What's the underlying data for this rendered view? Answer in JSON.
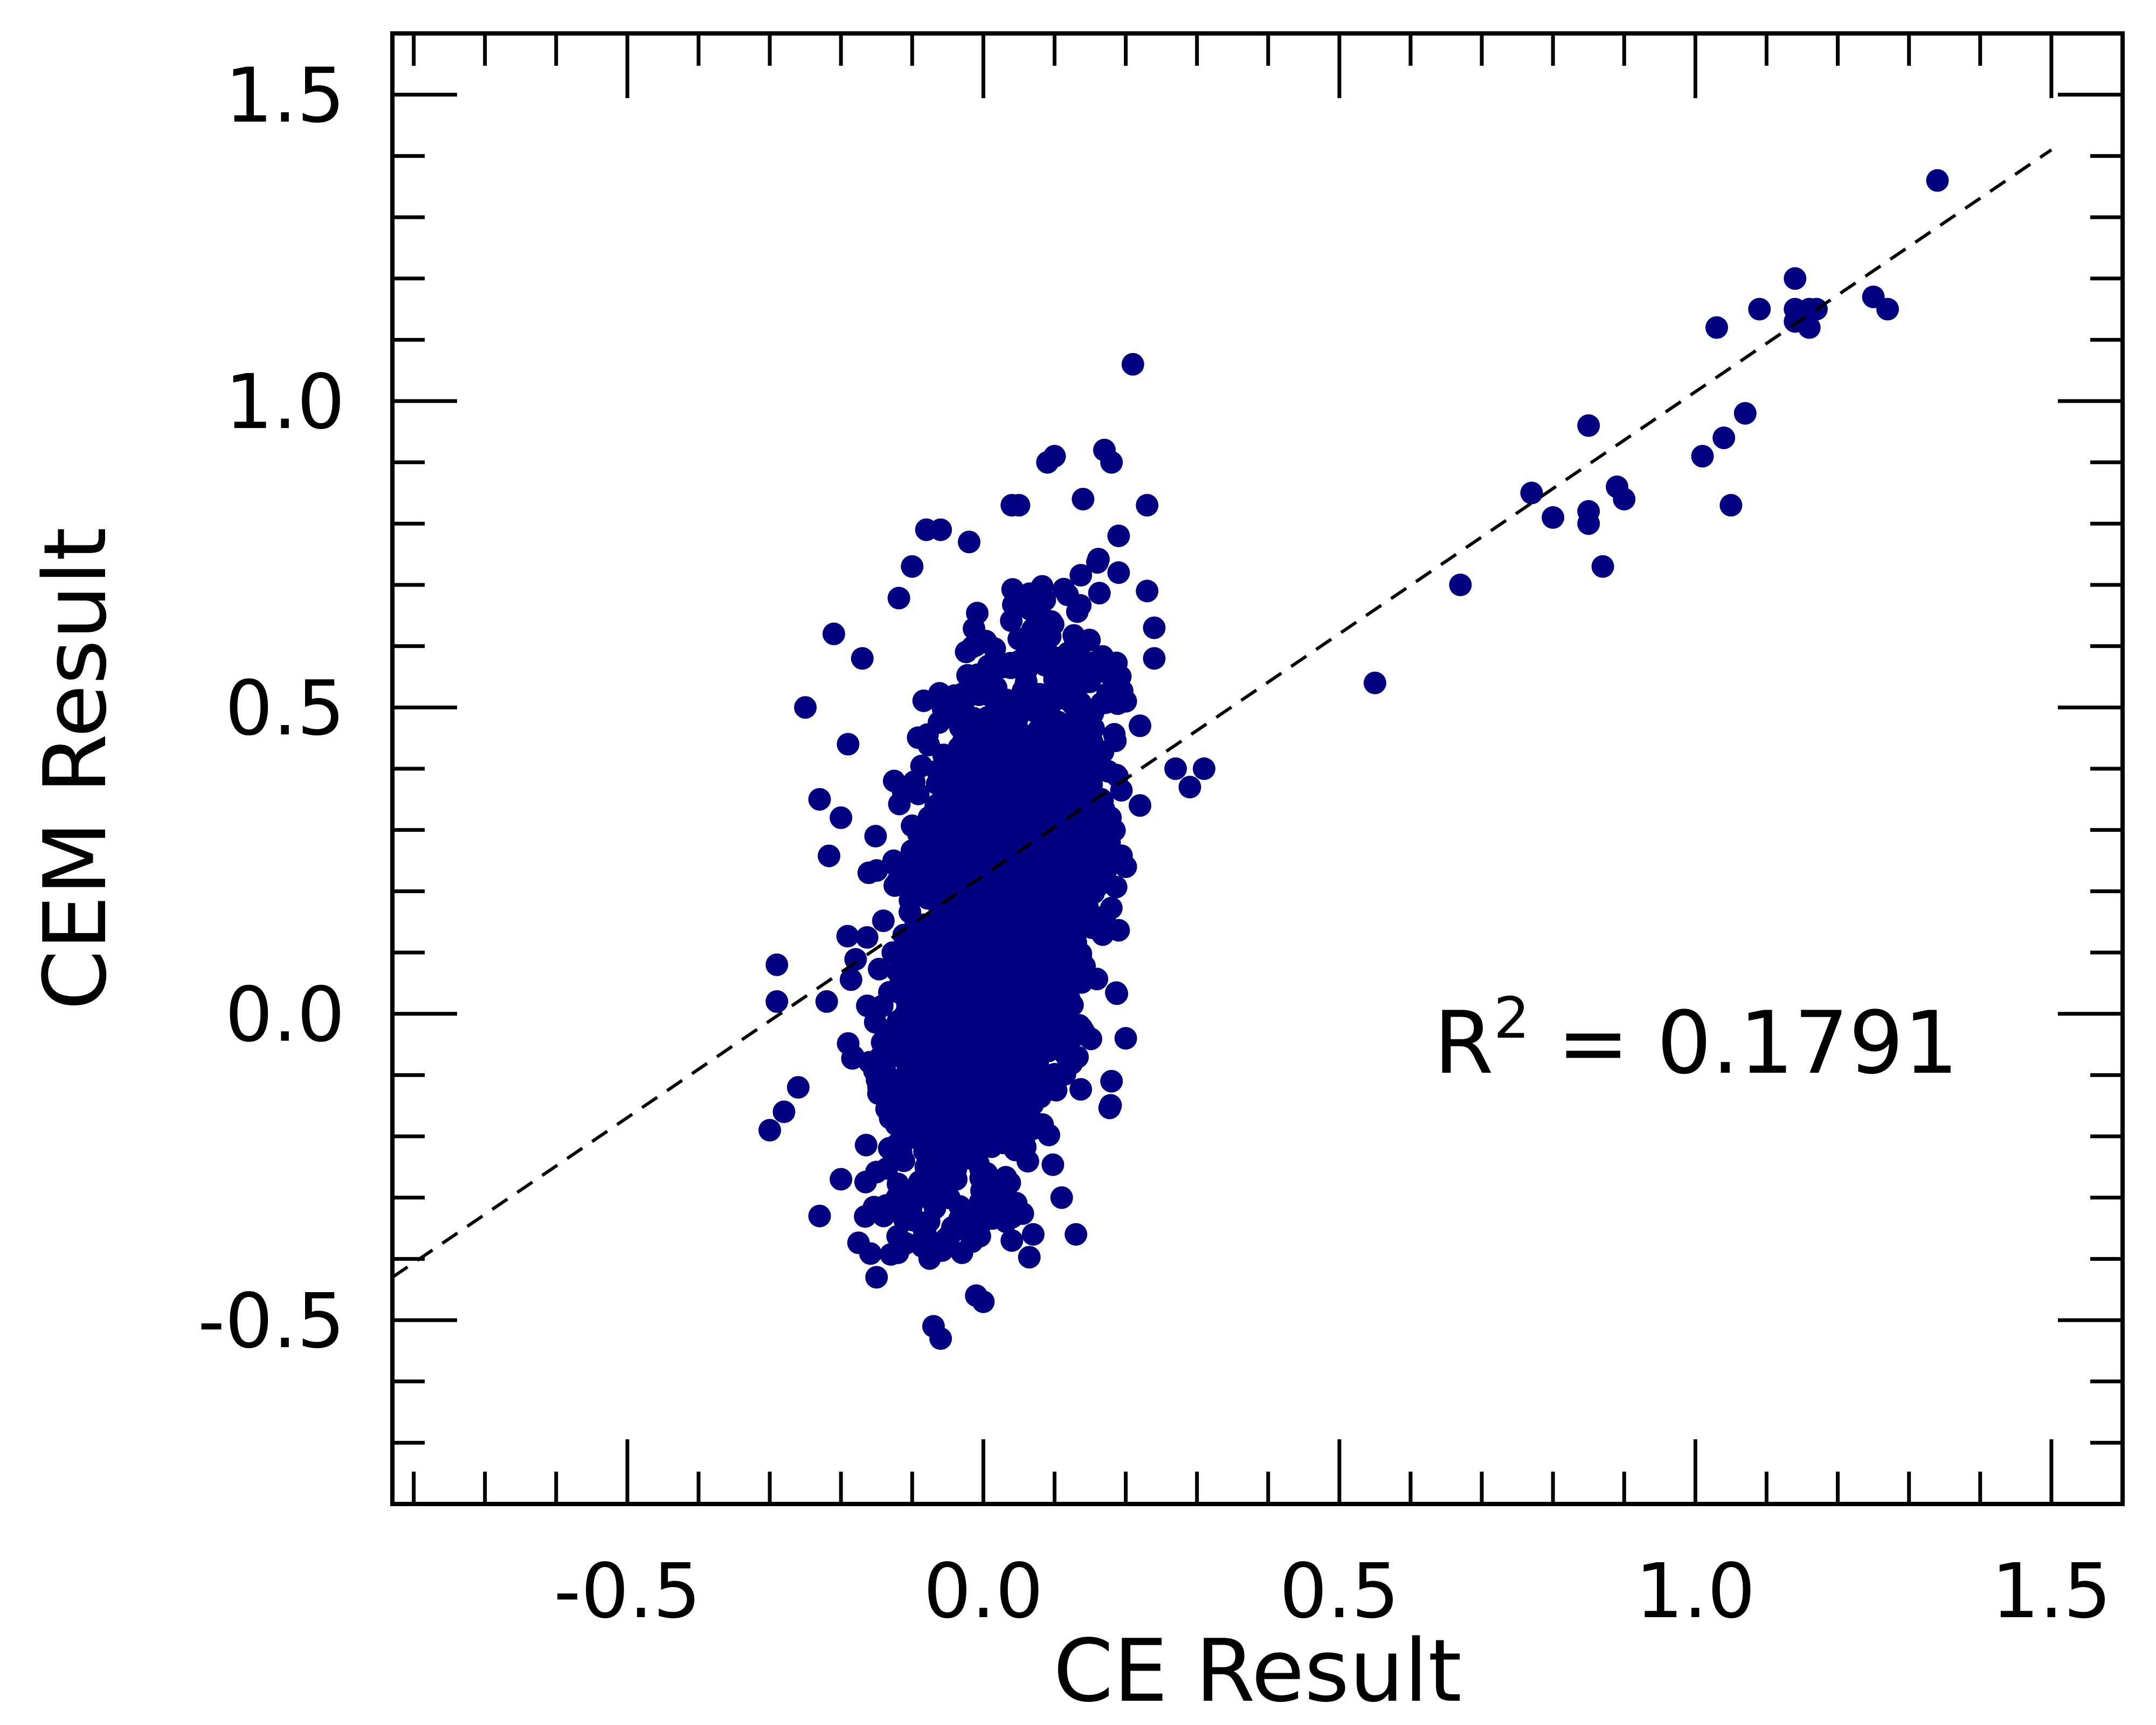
{
  "chart_data": {
    "type": "scatter",
    "title": "",
    "xlabel": "CE Result",
    "ylabel": "CEM Result",
    "xlim": [
      -0.83,
      1.6
    ],
    "ylim": [
      -0.8,
      1.6
    ],
    "x_major_ticks": [
      -0.5,
      0.0,
      0.5,
      1.0,
      1.5
    ],
    "x_tick_labels": [
      "-0.5",
      "0.0",
      "0.5",
      "1.0",
      "1.5"
    ],
    "y_major_ticks": [
      -0.5,
      0.0,
      0.5,
      1.0,
      1.5
    ],
    "y_tick_labels": [
      "-0.5",
      "0.0",
      "0.5",
      "1.0",
      "1.5"
    ],
    "minor_tick_step": 0.1,
    "ticks_direction": "in",
    "grid": false,
    "legend": "none",
    "marker_color": "#000080",
    "fit_line": {
      "style": "dashed",
      "color": "#000000",
      "x": [
        -0.83,
        1.5
      ],
      "y": [
        -0.43,
        1.41
      ]
    },
    "annotation": {
      "base": "R",
      "sup": "2",
      "rest": " = 0.1791"
    },
    "cluster": {
      "description": "dense cloud of several thousand points",
      "x_center": 0.02,
      "x_sd": 0.07,
      "y_center": 0.15,
      "y_sd": 0.22,
      "correlation": 0.42
    },
    "points": [
      [
        1.34,
        1.36
      ],
      [
        1.14,
        1.2
      ],
      [
        1.09,
        1.15
      ],
      [
        1.14,
        1.15
      ],
      [
        1.16,
        1.15
      ],
      [
        1.17,
        1.15
      ],
      [
        1.14,
        1.13
      ],
      [
        1.16,
        1.12
      ],
      [
        1.25,
        1.17
      ],
      [
        1.27,
        1.15
      ],
      [
        1.03,
        1.12
      ],
      [
        1.07,
        0.98
      ],
      [
        1.04,
        0.94
      ],
      [
        1.01,
        0.91
      ],
      [
        1.05,
        0.83
      ],
      [
        0.85,
        0.96
      ],
      [
        0.77,
        0.85
      ],
      [
        0.8,
        0.81
      ],
      [
        0.85,
        0.82
      ],
      [
        0.85,
        0.8
      ],
      [
        0.89,
        0.86
      ],
      [
        0.9,
        0.84
      ],
      [
        0.87,
        0.73
      ],
      [
        0.67,
        0.7
      ],
      [
        0.55,
        0.54
      ],
      [
        0.21,
        1.06
      ],
      [
        0.17,
        0.92
      ],
      [
        0.18,
        0.9
      ],
      [
        0.23,
        0.83
      ],
      [
        0.09,
        0.9
      ],
      [
        0.1,
        0.91
      ],
      [
        0.14,
        0.84
      ],
      [
        0.31,
        0.4
      ],
      [
        0.29,
        0.37
      ],
      [
        0.27,
        0.4
      ],
      [
        0.22,
        0.34
      ],
      [
        0.24,
        0.63
      ],
      [
        0.24,
        0.58
      ],
      [
        0.23,
        0.69
      ],
      [
        -0.25,
        0.5
      ],
      [
        -0.21,
        0.62
      ],
      [
        -0.23,
        0.35
      ],
      [
        -0.29,
        0.08
      ],
      [
        -0.29,
        0.02
      ],
      [
        -0.3,
        -0.19
      ],
      [
        -0.28,
        -0.16
      ],
      [
        -0.26,
        -0.12
      ],
      [
        -0.23,
        -0.33
      ],
      [
        -0.15,
        -0.43
      ],
      [
        -0.07,
        -0.51
      ],
      [
        -0.06,
        -0.53
      ],
      [
        -0.01,
        -0.46
      ],
      [
        0.0,
        -0.47
      ],
      [
        0.13,
        -0.36
      ],
      [
        -0.08,
        -0.37
      ],
      [
        -0.03,
        -0.39
      ],
      [
        0.04,
        -0.37
      ],
      [
        -0.2,
        -0.27
      ],
      [
        0.2,
        -0.04
      ],
      [
        0.18,
        -0.11
      ],
      [
        -0.22,
        0.02
      ],
      [
        -0.08,
        0.79
      ],
      [
        -0.06,
        0.79
      ],
      [
        -0.02,
        0.77
      ],
      [
        -0.1,
        0.73
      ],
      [
        0.05,
        0.83
      ],
      [
        0.04,
        0.83
      ],
      [
        0.19,
        0.78
      ],
      [
        0.19,
        0.72
      ],
      [
        0.2,
        0.51
      ],
      [
        0.22,
        0.47
      ],
      [
        0.2,
        0.24
      ],
      [
        -0.17,
        0.58
      ],
      [
        -0.19,
        0.44
      ],
      [
        -0.2,
        0.32
      ],
      [
        -0.14,
        -0.33
      ],
      [
        -0.12,
        -0.39
      ],
      [
        -0.1,
        -0.29
      ],
      [
        0.11,
        -0.3
      ],
      [
        0.07,
        -0.36
      ]
    ]
  }
}
